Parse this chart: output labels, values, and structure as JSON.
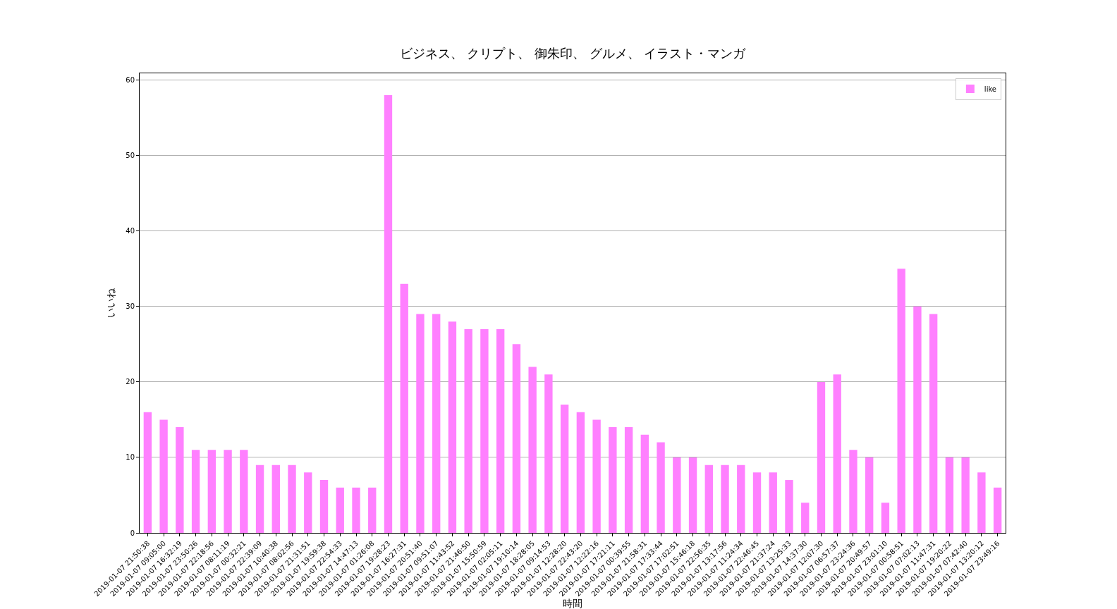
{
  "chart_data": {
    "type": "bar",
    "title": "ビジネス、 クリプト、 御朱印、 グルメ、 イラスト・マンガ",
    "xlabel": "時間",
    "ylabel": "いいね",
    "categories": [
      "2019-01-07 21:50:38",
      "2019-01-07 09:05:00",
      "2019-01-07 16:32:19",
      "2019-01-07 23:50:26",
      "2019-01-07 22:18:56",
      "2019-01-07 08:11:19",
      "2019-01-07 00:32:21",
      "2019-01-07 22:39:09",
      "2019-01-07 10:40:38",
      "2019-01-07 08:02:56",
      "2019-01-07 21:31:51",
      "2019-01-07 19:59:38",
      "2019-01-07 22:54:33",
      "2019-01-07 14:47:13",
      "2019-01-07 01:26:08",
      "2019-01-07 19:28:23",
      "2019-01-07 16:27:31",
      "2019-01-07 20:51:40",
      "2019-01-07 09:51:07",
      "2019-01-07 11:43:52",
      "2019-01-07 21:46:50",
      "2019-01-07 15:50:59",
      "2019-01-07 02:05:11",
      "2019-01-07 19:10:14",
      "2019-01-07 18:28:05",
      "2019-01-07 09:14:53",
      "2019-01-07 12:28:20",
      "2019-01-07 22:43:20",
      "2019-01-07 12:22:16",
      "2019-01-07 17:21:11",
      "2019-01-07 00:39:55",
      "2019-01-07 21:58:31",
      "2019-01-07 17:33:44",
      "2019-01-07 17:02:51",
      "2019-01-07 15:46:18",
      "2019-01-07 22:56:35",
      "2019-01-07 13:17:56",
      "2019-01-07 11:24:34",
      "2019-01-07 22:46:45",
      "2019-01-07 21:37:24",
      "2019-01-07 13:25:33",
      "2019-01-07 14:37:30",
      "2019-01-07 12:07:30",
      "2019-01-07 06:57:37",
      "2019-01-07 23:24:36",
      "2019-01-07 20:49:57",
      "2019-01-07 23:01:10",
      "2019-01-07 00:58:51",
      "2019-01-07 07:02:13",
      "2019-01-07 11:47:31",
      "2019-01-07 19:20:22",
      "2019-01-07 07:42:40",
      "2019-01-07 13:20:12",
      "2019-01-07 23:49:16"
    ],
    "series": [
      {
        "name": "like",
        "color": "#ff80ff",
        "values": [
          16,
          15,
          14,
          11,
          11,
          11,
          11,
          9,
          9,
          9,
          8,
          7,
          6,
          6,
          6,
          58,
          33,
          29,
          29,
          28,
          27,
          27,
          27,
          25,
          22,
          21,
          17,
          16,
          15,
          14,
          14,
          13,
          12,
          10,
          10,
          9,
          9,
          9,
          8,
          8,
          7,
          4,
          20,
          21,
          11,
          10,
          4,
          35,
          30,
          29,
          10,
          10,
          8,
          6
        ]
      }
    ],
    "ylim": [
      0,
      60.9
    ],
    "yticks": [
      0,
      10,
      20,
      30,
      40,
      50,
      60
    ],
    "grid": "y",
    "legend": "top right"
  }
}
